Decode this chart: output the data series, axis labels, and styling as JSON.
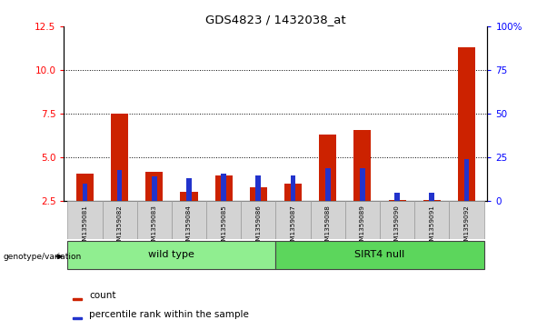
{
  "title": "GDS4823 / 1432038_at",
  "samples": [
    "GSM1359081",
    "GSM1359082",
    "GSM1359083",
    "GSM1359084",
    "GSM1359085",
    "GSM1359086",
    "GSM1359087",
    "GSM1359088",
    "GSM1359089",
    "GSM1359090",
    "GSM1359091",
    "GSM1359092"
  ],
  "count_values": [
    4.1,
    7.5,
    4.2,
    3.05,
    4.0,
    3.3,
    3.5,
    6.3,
    6.6,
    2.55,
    2.6,
    11.3
  ],
  "percentile_values": [
    10,
    18,
    14,
    13,
    16,
    15,
    15,
    19,
    19,
    5,
    5,
    24
  ],
  "groups": [
    {
      "label": "wild type",
      "start": 0,
      "end": 5,
      "color": "#90EE90"
    },
    {
      "label": "SIRT4 null",
      "start": 6,
      "end": 11,
      "color": "#5CD65C"
    }
  ],
  "ylim_left": [
    2.5,
    12.5
  ],
  "ylim_right": [
    0,
    100
  ],
  "yticks_left": [
    2.5,
    5.0,
    7.5,
    10.0,
    12.5
  ],
  "yticks_right": [
    0,
    25,
    50,
    75,
    100
  ],
  "ytick_labels_right": [
    "0",
    "25",
    "50",
    "75",
    "100%"
  ],
  "bar_color_red": "#CC2200",
  "bar_color_blue": "#2233CC",
  "red_bar_width": 0.5,
  "blue_bar_width": 0.15,
  "group_label_y": "genotype/variation",
  "legend_count": "count",
  "legend_pct": "percentile rank within the sample",
  "tick_area_bg": "#d3d3d3",
  "base": 2.5
}
